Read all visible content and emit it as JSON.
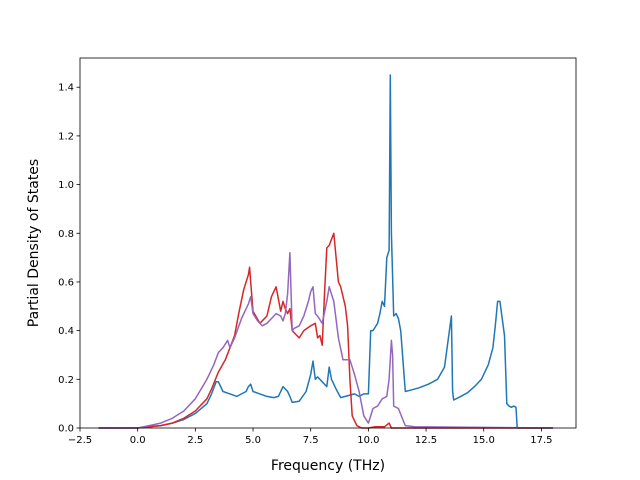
{
  "chart_data": {
    "type": "line",
    "xlabel": "Frequency (THz)",
    "ylabel": "Partial Density of States",
    "xlim": [
      -2.5,
      19.0
    ],
    "ylim": [
      0.0,
      1.52
    ],
    "xticks": [
      "−2.5",
      "0.0",
      "2.5",
      "5.0",
      "7.5",
      "10.0",
      "12.5",
      "15.0",
      "17.5"
    ],
    "xtick_values": [
      -2.5,
      0.0,
      2.5,
      5.0,
      7.5,
      10.0,
      12.5,
      15.0,
      17.5
    ],
    "yticks": [
      "0.0",
      "0.2",
      "0.4",
      "0.6",
      "0.8",
      "1.0",
      "1.2",
      "1.4"
    ],
    "ytick_values": [
      0.0,
      0.2,
      0.4,
      0.6,
      0.8,
      1.0,
      1.2,
      1.4
    ],
    "grid": false,
    "legend": false,
    "series": [
      {
        "color": "#1f77b4",
        "x": [
          -1.7,
          0.0,
          0.5,
          1.0,
          1.5,
          2.0,
          2.5,
          3.0,
          3.2,
          3.4,
          3.5,
          3.7,
          4.0,
          4.3,
          4.5,
          4.7,
          4.8,
          4.9,
          5.0,
          5.3,
          5.6,
          5.9,
          6.1,
          6.3,
          6.5,
          6.6,
          6.7,
          7.0,
          7.3,
          7.5,
          7.6,
          7.7,
          7.8,
          8.0,
          8.2,
          8.3,
          8.4,
          8.6,
          8.8,
          9.0,
          9.2,
          9.4,
          9.6,
          9.8,
          10.0,
          10.1,
          10.2,
          10.4,
          10.5,
          10.6,
          10.7,
          10.8,
          10.9,
          10.95,
          11.0,
          11.1,
          11.2,
          11.3,
          11.4,
          11.6,
          11.8,
          12.2,
          12.6,
          13.0,
          13.3,
          13.6,
          13.65,
          13.7,
          14.0,
          14.3,
          14.6,
          14.9,
          15.2,
          15.4,
          15.5,
          15.6,
          15.7,
          15.9,
          16.0,
          16.1,
          16.2,
          16.3,
          16.4,
          16.45,
          16.5,
          17.0,
          18.0
        ],
        "y": [
          0.0,
          0.0,
          0.005,
          0.01,
          0.02,
          0.035,
          0.06,
          0.1,
          0.14,
          0.19,
          0.19,
          0.15,
          0.14,
          0.13,
          0.14,
          0.15,
          0.17,
          0.18,
          0.15,
          0.14,
          0.13,
          0.125,
          0.13,
          0.17,
          0.15,
          0.13,
          0.105,
          0.11,
          0.15,
          0.22,
          0.275,
          0.2,
          0.21,
          0.19,
          0.17,
          0.25,
          0.2,
          0.16,
          0.125,
          0.13,
          0.135,
          0.14,
          0.13,
          0.14,
          0.14,
          0.4,
          0.4,
          0.43,
          0.47,
          0.52,
          0.5,
          0.7,
          0.73,
          1.45,
          0.8,
          0.46,
          0.47,
          0.45,
          0.4,
          0.15,
          0.155,
          0.165,
          0.18,
          0.2,
          0.25,
          0.46,
          0.15,
          0.115,
          0.13,
          0.145,
          0.17,
          0.2,
          0.26,
          0.33,
          0.42,
          0.52,
          0.52,
          0.38,
          0.1,
          0.09,
          0.085,
          0.09,
          0.085,
          0.0,
          0.0,
          0.0,
          0.0
        ]
      },
      {
        "color": "#d62728",
        "x": [
          -1.7,
          0.0,
          0.5,
          1.0,
          1.5,
          2.0,
          2.5,
          3.0,
          3.2,
          3.5,
          3.8,
          4.0,
          4.2,
          4.4,
          4.6,
          4.8,
          4.85,
          4.9,
          5.0,
          5.3,
          5.6,
          5.8,
          6.0,
          6.2,
          6.3,
          6.4,
          6.5,
          6.6,
          6.7,
          6.8,
          7.0,
          7.2,
          7.5,
          7.7,
          7.8,
          7.9,
          8.0,
          8.1,
          8.2,
          8.3,
          8.5,
          8.6,
          8.7,
          8.8,
          9.0,
          9.1,
          9.2,
          9.3,
          9.5,
          9.7,
          10.0,
          10.3,
          10.7,
          10.9,
          11.0,
          11.1,
          11.3,
          12.0,
          18.0
        ],
        "y": [
          0.0,
          0.0,
          0.005,
          0.01,
          0.02,
          0.04,
          0.07,
          0.12,
          0.16,
          0.23,
          0.28,
          0.33,
          0.38,
          0.48,
          0.57,
          0.63,
          0.66,
          0.6,
          0.48,
          0.43,
          0.46,
          0.54,
          0.58,
          0.48,
          0.52,
          0.49,
          0.47,
          0.49,
          0.4,
          0.39,
          0.37,
          0.4,
          0.42,
          0.43,
          0.37,
          0.38,
          0.34,
          0.55,
          0.74,
          0.75,
          0.8,
          0.7,
          0.6,
          0.58,
          0.5,
          0.42,
          0.2,
          0.05,
          0.01,
          0.0,
          0.0,
          0.005,
          0.005,
          0.02,
          0.0,
          0.0,
          0.0,
          0.0,
          0.0
        ]
      },
      {
        "color": "#9467bd",
        "x": [
          -1.7,
          0.0,
          0.5,
          1.0,
          1.5,
          2.0,
          2.5,
          3.0,
          3.3,
          3.5,
          3.7,
          3.9,
          4.0,
          4.2,
          4.5,
          4.8,
          4.9,
          5.0,
          5.2,
          5.4,
          5.6,
          5.8,
          6.0,
          6.2,
          6.3,
          6.4,
          6.5,
          6.6,
          6.7,
          6.8,
          7.0,
          7.2,
          7.4,
          7.5,
          7.6,
          7.7,
          7.8,
          8.0,
          8.2,
          8.3,
          8.5,
          8.7,
          8.9,
          9.0,
          9.2,
          9.4,
          9.6,
          9.8,
          10.0,
          10.2,
          10.4,
          10.6,
          10.8,
          10.9,
          11.0,
          11.05,
          11.1,
          11.3,
          11.6,
          12.0,
          18.0
        ],
        "y": [
          0.0,
          0.0,
          0.01,
          0.02,
          0.04,
          0.07,
          0.12,
          0.2,
          0.26,
          0.31,
          0.33,
          0.36,
          0.33,
          0.37,
          0.45,
          0.51,
          0.54,
          0.47,
          0.44,
          0.42,
          0.43,
          0.45,
          0.47,
          0.46,
          0.44,
          0.47,
          0.55,
          0.72,
          0.4,
          0.41,
          0.42,
          0.46,
          0.52,
          0.56,
          0.58,
          0.47,
          0.46,
          0.43,
          0.52,
          0.58,
          0.52,
          0.37,
          0.28,
          0.28,
          0.28,
          0.22,
          0.15,
          0.05,
          0.02,
          0.08,
          0.09,
          0.12,
          0.13,
          0.2,
          0.36,
          0.3,
          0.09,
          0.08,
          0.01,
          0.005,
          0.0
        ]
      }
    ]
  }
}
